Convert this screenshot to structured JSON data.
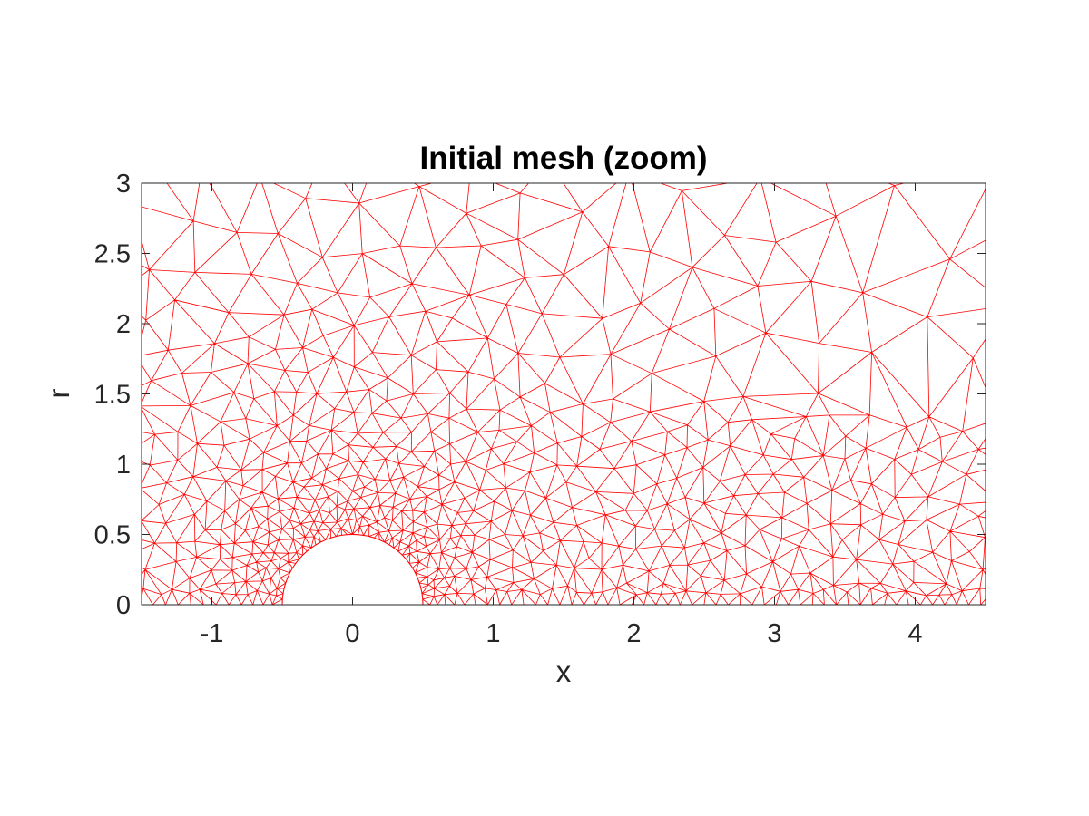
{
  "chart_data": {
    "type": "mesh",
    "title": "Initial mesh (zoom)",
    "xlabel": "x",
    "ylabel": "r",
    "xlim": [
      -1.5,
      4.5
    ],
    "ylim": [
      0,
      3
    ],
    "xticks": [
      -1,
      0,
      1,
      2,
      3,
      4
    ],
    "xtick_labels": [
      "-1",
      "0",
      "1",
      "2",
      "3",
      "4"
    ],
    "yticks": [
      0,
      0.5,
      1,
      1.5,
      2,
      2.5,
      3
    ],
    "ytick_labels": [
      "0",
      "0.5",
      "1",
      "1.5",
      "2",
      "2.5",
      "3"
    ],
    "mesh_color": "#ff0000",
    "body": {
      "shape": "semicircle",
      "center": [
        0,
        0
      ],
      "radius": 0.5
    },
    "grid": false,
    "box": true
  }
}
